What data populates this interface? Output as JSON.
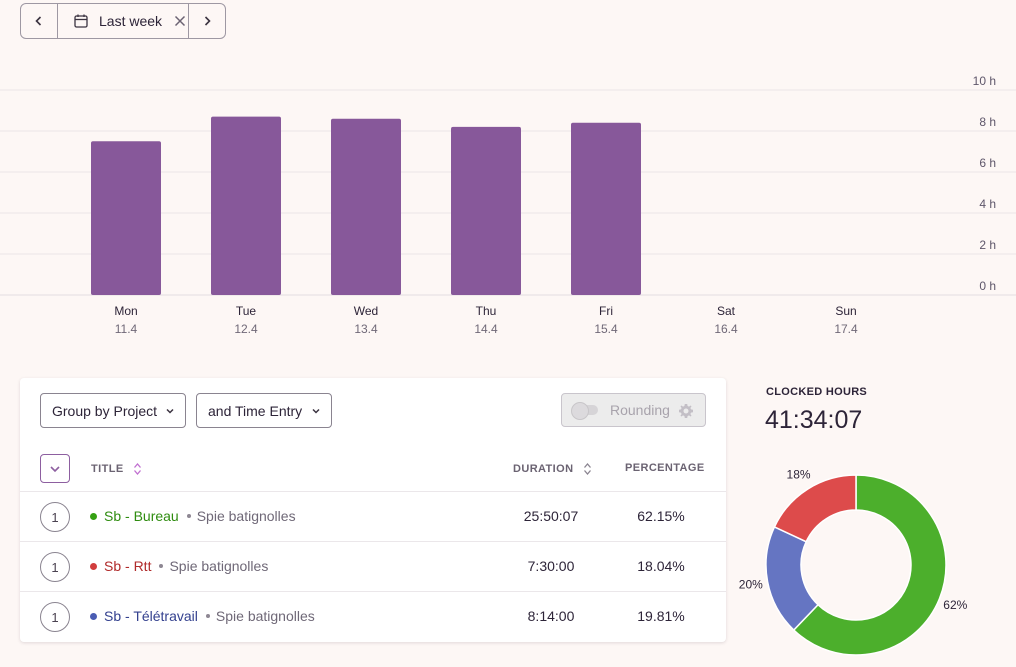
{
  "date_range": {
    "label": "Last week"
  },
  "chart_data": {
    "type": "bar",
    "categories": [
      "Mon",
      "Tue",
      "Wed",
      "Thu",
      "Fri",
      "Sat",
      "Sun"
    ],
    "dates": [
      "11.4",
      "12.4",
      "13.4",
      "14.4",
      "15.4",
      "16.4",
      "17.4"
    ],
    "values": [
      7.5,
      8.7,
      8.6,
      8.2,
      8.4,
      0,
      0
    ],
    "y_ticks": [
      "0 h",
      "2 h",
      "4 h",
      "6 h",
      "8 h",
      "10 h"
    ],
    "ylim": [
      0,
      10
    ],
    "grid": true,
    "color": "#87589a"
  },
  "table": {
    "group_by_label": "Group by Project",
    "then_by_label": "and Time Entry",
    "rounding_label": "Rounding",
    "headers": {
      "title": "TITLE",
      "duration": "DURATION",
      "percentage": "PERCENTAGE"
    },
    "rows": [
      {
        "count": "1",
        "project": "Sb - Bureau",
        "client": "Spie batignolles",
        "duration": "25:50:07",
        "percentage": "62.15%",
        "color": "#35a012",
        "text_color": "#2f8c10"
      },
      {
        "count": "1",
        "project": "Sb - Rtt",
        "client": "Spie batignolles",
        "duration": "7:30:00",
        "percentage": "18.04%",
        "color": "#d13d3d",
        "text_color": "#b02a2a"
      },
      {
        "count": "1",
        "project": "Sb - Télétravail",
        "client": "Spie batignolles",
        "duration": "8:14:00",
        "percentage": "19.81%",
        "color": "#4a5cb3",
        "text_color": "#34418f"
      }
    ]
  },
  "clocked": {
    "label": "CLOCKED HOURS",
    "value": "41:34:07"
  },
  "donut": {
    "slices": [
      {
        "name": "Sb - Bureau",
        "value": 62.15,
        "label": "62%",
        "color": "#4caf2c"
      },
      {
        "name": "Sb - Télétravail",
        "value": 19.81,
        "label": "20%",
        "color": "#6575c2"
      },
      {
        "name": "Sb - Rtt",
        "value": 18.04,
        "label": "18%",
        "color": "#dd4b4b"
      }
    ]
  },
  "icons": {
    "prev": "chevron-left-icon",
    "next": "chevron-right-icon",
    "calendar": "calendar-icon",
    "clear": "close-icon",
    "gear": "gear-icon",
    "collapse": "chevron-down-icon"
  }
}
